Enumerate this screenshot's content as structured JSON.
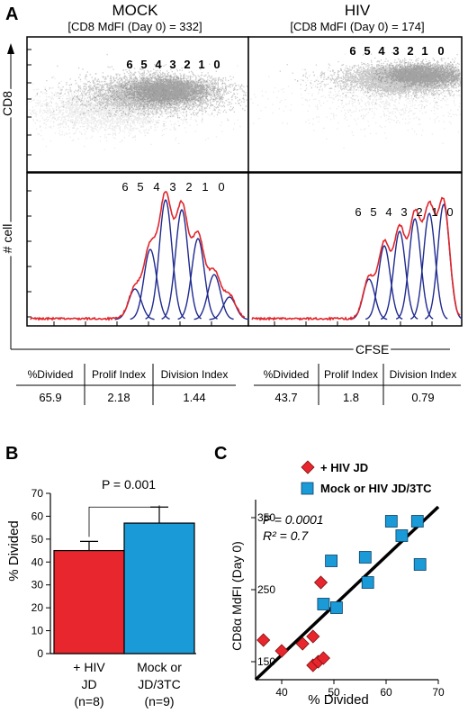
{
  "panel_a": {
    "label": "A",
    "mock": {
      "title": "MOCK",
      "subtitle": "[CD8 MdFI (Day 0) = 332]",
      "division_labels": [
        "6",
        "5",
        "4",
        "3",
        "2",
        "1",
        "0"
      ],
      "stats_headers": [
        "%Divided",
        "Prolif Index",
        "Division Index"
      ],
      "stats_values": [
        "65.9",
        "2.18",
        "1.44"
      ]
    },
    "hiv": {
      "title": "HIV",
      "subtitle": "[CD8 MdFI (Day 0) = 174]",
      "division_labels": [
        "6",
        "5",
        "4",
        "3",
        "2",
        "1",
        "0"
      ],
      "stats_headers": [
        "%Divided",
        "Prolif Index",
        "Division Index"
      ],
      "stats_values": [
        "43.7",
        "1.8",
        "0.79"
      ]
    },
    "y_label_top": "CD8",
    "y_label_bottom": "# cell",
    "x_label": "CFSE",
    "colors": {
      "fit": "#1f2a8f",
      "envelope": "#e0262b"
    }
  },
  "panel_b": {
    "label": "B",
    "ylabel": "% Divided",
    "p_label": "P = 0.001",
    "x_tick_lines": [
      [
        "+ HIV",
        "JD",
        "(n=8)"
      ],
      [
        "Mock or",
        "JD/3TC",
        "(n=9)"
      ]
    ]
  },
  "panel_c": {
    "label": "C",
    "xlabel": "% Divided",
    "ylabel": "CD8α MdFI (Day 0)",
    "p_label": "P = 0.0001",
    "r2_label": "R² = 0.7",
    "legend": [
      "+ HIV JD",
      "Mock or HIV JD/3TC"
    ]
  },
  "chart_data": [
    {
      "type": "bar",
      "panel": "B",
      "categories": [
        "+ HIV JD (n=8)",
        "Mock or JD/3TC (n=9)"
      ],
      "values": [
        45,
        57
      ],
      "errors": [
        4,
        7
      ],
      "colors": [
        "#e8262d",
        "#1a9ad6"
      ],
      "ylim": [
        0,
        70
      ],
      "yticks": [
        0,
        10,
        20,
        30,
        40,
        50,
        60,
        70
      ],
      "ylabel": "% Divided"
    },
    {
      "type": "scatter",
      "panel": "C",
      "xlim": [
        35,
        70
      ],
      "ylim": [
        125,
        375
      ],
      "xticks": [
        40,
        50,
        60,
        70
      ],
      "yticks": [
        150,
        250,
        350
      ],
      "xlabel": "% Divided",
      "ylabel": "CD8α MdFI (Day 0)",
      "series": [
        {
          "name": "+ HIV JD",
          "color": "#e8262d",
          "marker": "diamond",
          "points": [
            [
              36.5,
              180
            ],
            [
              40,
              165
            ],
            [
              44,
              175
            ],
            [
              46,
              185
            ],
            [
              46,
              145
            ],
            [
              47,
              150
            ],
            [
              48,
              155
            ],
            [
              47.5,
              260
            ]
          ]
        },
        {
          "name": "Mock or HIV JD/3TC",
          "color": "#1a9ad6",
          "marker": "square",
          "points": [
            [
              48,
              230
            ],
            [
              49.5,
              290
            ],
            [
              50.5,
              225
            ],
            [
              56,
              295
            ],
            [
              56.5,
              260
            ],
            [
              61,
              345
            ],
            [
              63,
              325
            ],
            [
              66,
              345
            ],
            [
              66.5,
              285
            ]
          ]
        }
      ],
      "fit_line": [
        [
          35,
          125
        ],
        [
          70,
          365
        ]
      ]
    }
  ]
}
